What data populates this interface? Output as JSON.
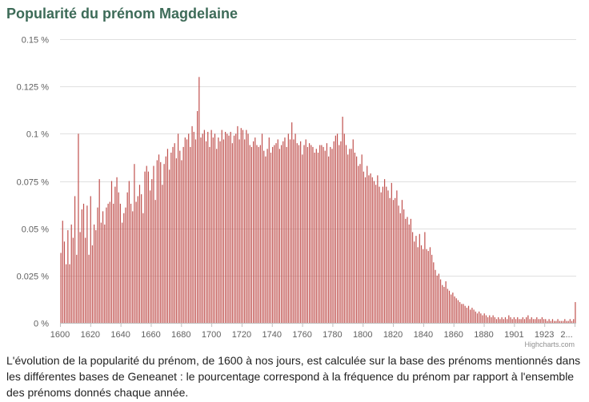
{
  "title": "Popularité du prénom Magdelaine",
  "credit": "Highcharts.com",
  "description": "L'évolution de la popularité du prénom, de 1600 à nos jours, est calculée sur la base des prénoms mentionnés dans les différentes bases de Geneanet : le pourcentage correspond à la fréquence du prénom par rapport à l'ensemble des prénoms donnés chaque année.",
  "colors": {
    "bar": "#c0504d",
    "grid": "#e0e0e0",
    "title": "#3d6b58"
  },
  "chart_data": {
    "type": "bar",
    "title": "Popularité du prénom Magdelaine",
    "xlabel": "",
    "ylabel": "",
    "ylim": [
      0,
      0.15
    ],
    "grid": true,
    "legend": "none",
    "y_tick_labels": [
      "0 %",
      "0.025 %",
      "0.05 %",
      "0.075 %",
      "0.1 %",
      "0.125 %",
      "0.15 %"
    ],
    "y_ticks": [
      0,
      0.025,
      0.05,
      0.075,
      0.1,
      0.125,
      0.15
    ],
    "x_tick_labels": [
      "1600",
      "1620",
      "1640",
      "1660",
      "1680",
      "1700",
      "1720",
      "1740",
      "1760",
      "1780",
      "1800",
      "1820",
      "1840",
      "1860",
      "1880",
      "1901",
      "1923",
      "2..."
    ],
    "x_start": 1600,
    "unit": "%",
    "values": [
      0.037,
      0.054,
      0.043,
      0.031,
      0.049,
      0.031,
      0.052,
      0.045,
      0.067,
      0.036,
      0.1,
      0.048,
      0.06,
      0.063,
      0.045,
      0.062,
      0.036,
      0.067,
      0.041,
      0.052,
      0.049,
      0.061,
      0.076,
      0.053,
      0.059,
      0.052,
      0.061,
      0.063,
      0.064,
      0.075,
      0.063,
      0.072,
      0.077,
      0.069,
      0.063,
      0.053,
      0.058,
      0.061,
      0.069,
      0.075,
      0.063,
      0.059,
      0.084,
      0.064,
      0.067,
      0.073,
      0.068,
      0.058,
      0.08,
      0.083,
      0.08,
      0.07,
      0.076,
      0.083,
      0.065,
      0.086,
      0.089,
      0.085,
      0.073,
      0.084,
      0.088,
      0.092,
      0.081,
      0.09,
      0.093,
      0.095,
      0.087,
      0.1,
      0.091,
      0.086,
      0.093,
      0.098,
      0.097,
      0.1,
      0.093,
      0.104,
      0.101,
      0.097,
      0.112,
      0.13,
      0.098,
      0.1,
      0.102,
      0.096,
      0.101,
      0.093,
      0.102,
      0.098,
      0.1,
      0.092,
      0.098,
      0.096,
      0.102,
      0.097,
      0.101,
      0.1,
      0.099,
      0.101,
      0.095,
      0.099,
      0.1,
      0.104,
      0.097,
      0.103,
      0.102,
      0.097,
      0.102,
      0.1,
      0.094,
      0.093,
      0.096,
      0.098,
      0.094,
      0.093,
      0.094,
      0.1,
      0.091,
      0.088,
      0.092,
      0.098,
      0.09,
      0.093,
      0.094,
      0.095,
      0.097,
      0.092,
      0.094,
      0.096,
      0.098,
      0.093,
      0.1,
      0.097,
      0.106,
      0.097,
      0.1,
      0.095,
      0.094,
      0.096,
      0.089,
      0.094,
      0.097,
      0.093,
      0.095,
      0.094,
      0.093,
      0.09,
      0.092,
      0.09,
      0.094,
      0.094,
      0.093,
      0.091,
      0.095,
      0.088,
      0.093,
      0.092,
      0.096,
      0.099,
      0.1,
      0.094,
      0.096,
      0.109,
      0.1,
      0.094,
      0.089,
      0.092,
      0.092,
      0.097,
      0.09,
      0.088,
      0.083,
      0.084,
      0.089,
      0.08,
      0.077,
      0.083,
      0.078,
      0.079,
      0.077,
      0.075,
      0.073,
      0.078,
      0.072,
      0.069,
      0.072,
      0.076,
      0.072,
      0.07,
      0.066,
      0.074,
      0.065,
      0.066,
      0.07,
      0.062,
      0.058,
      0.065,
      0.06,
      0.055,
      0.056,
      0.052,
      0.055,
      0.048,
      0.043,
      0.046,
      0.04,
      0.047,
      0.041,
      0.039,
      0.048,
      0.039,
      0.038,
      0.04,
      0.036,
      0.032,
      0.028,
      0.025,
      0.026,
      0.023,
      0.02,
      0.019,
      0.022,
      0.018,
      0.017,
      0.015,
      0.016,
      0.014,
      0.013,
      0.012,
      0.011,
      0.01,
      0.01,
      0.009,
      0.008,
      0.009,
      0.007,
      0.008,
      0.007,
      0.006,
      0.005,
      0.006,
      0.005,
      0.004,
      0.005,
      0.004,
      0.003,
      0.004,
      0.003,
      0.004,
      0.003,
      0.002,
      0.003,
      0.002,
      0.003,
      0.002,
      0.003,
      0.002,
      0.004,
      0.003,
      0.002,
      0.003,
      0.002,
      0.003,
      0.002,
      0.002,
      0.003,
      0.002,
      0.003,
      0.004,
      0.002,
      0.003,
      0.002,
      0.002,
      0.003,
      0.002,
      0.002,
      0.003,
      0.002,
      0.002,
      0.001,
      0.002,
      0.001,
      0.002,
      0.001,
      0.001,
      0.002,
      0.001,
      0.001,
      0.001,
      0.002,
      0.001,
      0.001,
      0.002,
      0.001,
      0.002,
      0.011
    ]
  }
}
